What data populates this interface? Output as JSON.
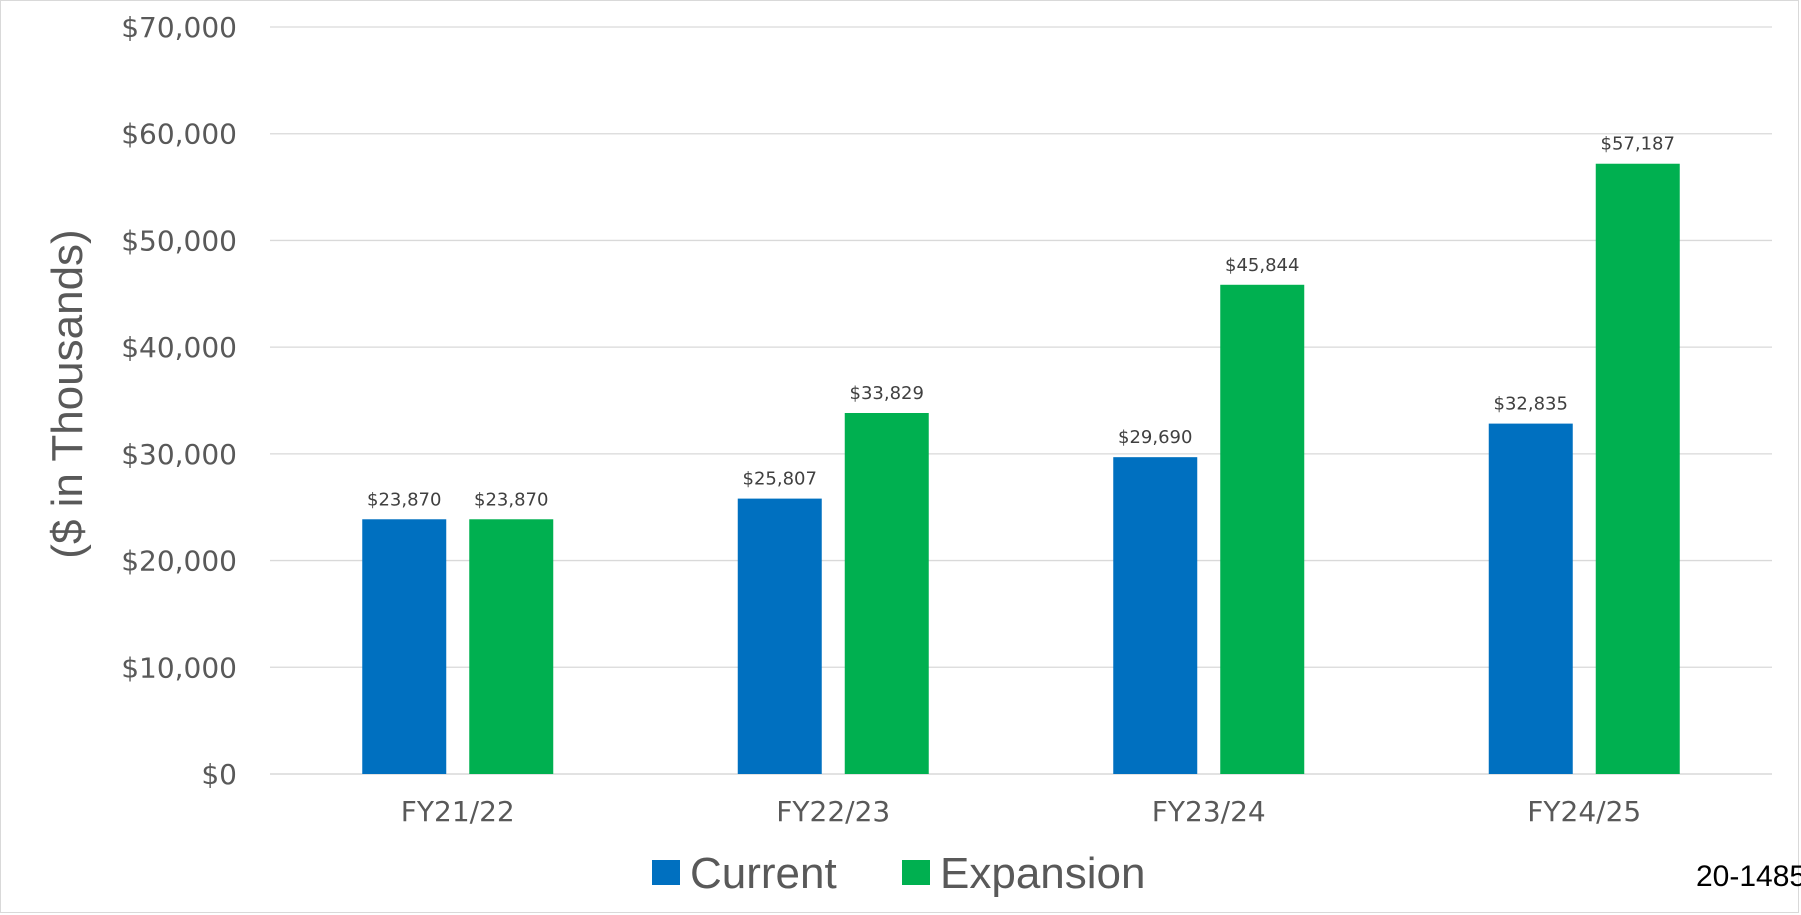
{
  "chart_data": {
    "type": "bar",
    "categories": [
      "FY21/22",
      "FY22/23",
      "FY23/24",
      "FY24/25"
    ],
    "series": [
      {
        "name": "Current",
        "color": "#0070c0",
        "values": [
          23870,
          25807,
          29690,
          32835
        ]
      },
      {
        "name": "Expansion",
        "color": "#00b050",
        "values": [
          23870,
          33829,
          45844,
          57187
        ]
      }
    ],
    "data_labels": [
      [
        "$23,870",
        "$25,807",
        "$29,690",
        "$32,835"
      ],
      [
        "$23,870",
        "$33,829",
        "$45,844",
        "$57,187"
      ]
    ],
    "yticks": [
      0,
      10000,
      20000,
      30000,
      40000,
      50000,
      60000,
      70000
    ],
    "ytick_labels": [
      "$0",
      "$10,000",
      "$20,000",
      "$30,000",
      "$40,000",
      "$50,000",
      "$60,000",
      "$70,000"
    ],
    "ylim": [
      0,
      70000
    ],
    "title": "",
    "xlabel": "",
    "ylabel": "($ in Thousands)",
    "grid": true,
    "legend_position": "bottom"
  },
  "footer_code": "20-1485"
}
